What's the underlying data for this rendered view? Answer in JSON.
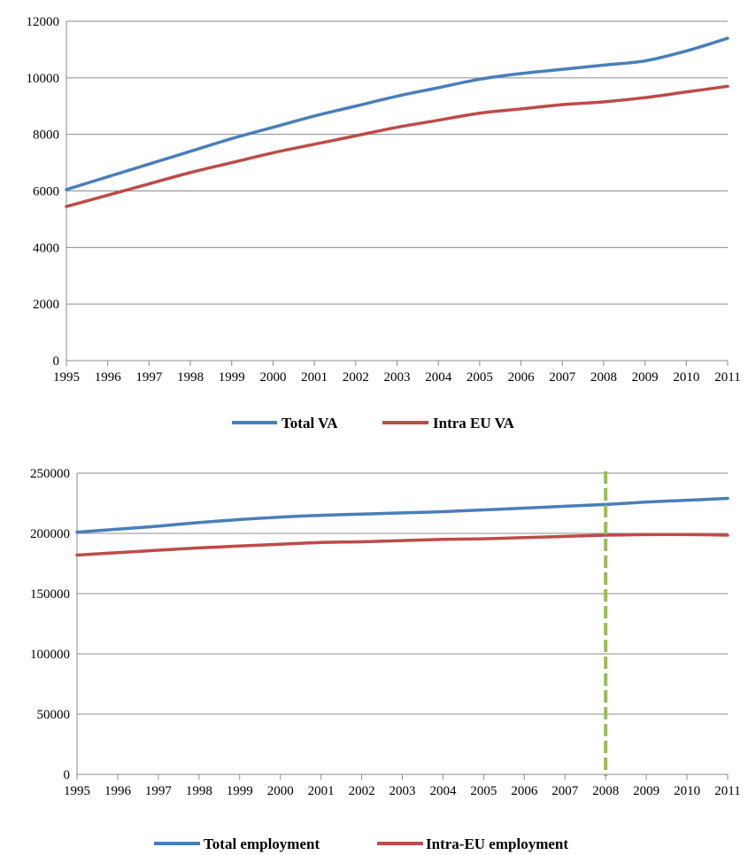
{
  "chart_data": [
    {
      "type": "line",
      "title": "",
      "xlabel": "",
      "ylabel": "",
      "categories": [
        "1995",
        "1996",
        "1997",
        "1998",
        "1999",
        "2000",
        "2001",
        "2002",
        "2003",
        "2004",
        "2005",
        "2006",
        "2007",
        "2008",
        "2009",
        "2010",
        "2011"
      ],
      "ylim": [
        0,
        12000
      ],
      "yticks": [
        0,
        2000,
        4000,
        6000,
        8000,
        10000,
        12000
      ],
      "grid": true,
      "legend_position": "bottom",
      "series": [
        {
          "name": "Total VA",
          "color": "#4a7ebb",
          "values": [
            6050,
            6500,
            6950,
            7400,
            7850,
            8250,
            8650,
            9000,
            9350,
            9650,
            9950,
            10150,
            10300,
            10450,
            10600,
            10950,
            11400
          ]
        },
        {
          "name": "Intra EU VA",
          "color": "#be4b48",
          "values": [
            5450,
            5850,
            6250,
            6650,
            7000,
            7350,
            7650,
            7950,
            8250,
            8500,
            8750,
            8900,
            9050,
            9150,
            9300,
            9500,
            9700
          ]
        }
      ]
    },
    {
      "type": "line",
      "title": "",
      "xlabel": "",
      "ylabel": "",
      "categories": [
        "1995",
        "1996",
        "1997",
        "1998",
        "1999",
        "2000",
        "2001",
        "2002",
        "2003",
        "2004",
        "2005",
        "2006",
        "2007",
        "2008",
        "2009",
        "2010",
        "2011"
      ],
      "ylim": [
        0,
        250000
      ],
      "yticks": [
        0,
        50000,
        100000,
        150000,
        200000,
        250000
      ],
      "grid": true,
      "legend_position": "bottom",
      "reference_line": {
        "x": "2008",
        "color": "#9bbb59",
        "style": "dashed"
      },
      "series": [
        {
          "name": "Total employment",
          "color": "#4a7ebb",
          "values": [
            201000,
            203500,
            206000,
            209000,
            211500,
            213500,
            215000,
            216000,
            217000,
            218000,
            219500,
            221000,
            222500,
            224000,
            226000,
            227500,
            229000
          ]
        },
        {
          "name": "Intra-EU employment",
          "color": "#be4b48",
          "values": [
            182000,
            184000,
            186000,
            188000,
            189500,
            191000,
            192500,
            193000,
            194000,
            195000,
            195500,
            196500,
            197500,
            198500,
            199000,
            199000,
            198500
          ]
        }
      ]
    }
  ]
}
